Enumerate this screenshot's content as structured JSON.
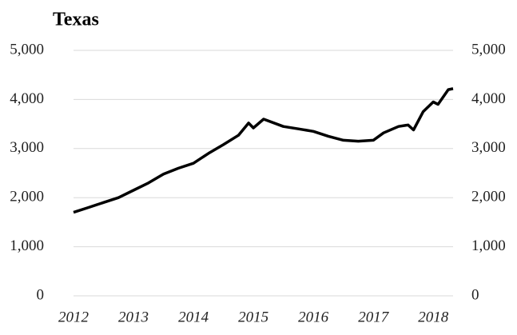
{
  "chart_data": {
    "type": "line",
    "title": "Texas",
    "x": [
      2012.0,
      2012.25,
      2012.5,
      2012.75,
      2013.0,
      2013.25,
      2013.5,
      2013.75,
      2014.0,
      2014.25,
      2014.5,
      2014.75,
      2014.92,
      2015.0,
      2015.17,
      2015.5,
      2015.75,
      2016.0,
      2016.25,
      2016.5,
      2016.75,
      2017.0,
      2017.17,
      2017.42,
      2017.58,
      2017.67,
      2017.83,
      2018.0,
      2018.08,
      2018.25,
      2018.33
    ],
    "series": [
      {
        "name": "Texas",
        "color": "#000000",
        "values": [
          1700,
          1800,
          1900,
          2000,
          2150,
          2300,
          2480,
          2600,
          2700,
          2900,
          3080,
          3270,
          3520,
          3420,
          3600,
          3450,
          3400,
          3350,
          3250,
          3170,
          3150,
          3170,
          3320,
          3450,
          3480,
          3380,
          3750,
          3950,
          3900,
          4200,
          4220
        ]
      }
    ],
    "xlim": [
      2012,
      2018.33
    ],
    "xticks": [
      2012,
      2013,
      2014,
      2015,
      2016,
      2017,
      2018
    ],
    "ylim": [
      0,
      5000
    ],
    "yticks": [
      0,
      {
        "value": 1000,
        "label": "1,000"
      },
      {
        "value": 2000,
        "label": "2,000"
      },
      {
        "value": 3000,
        "label": "3,000"
      },
      {
        "value": 4000,
        "label": "4,000"
      },
      {
        "value": 5000,
        "label": "5,000"
      }
    ],
    "grid": true
  }
}
